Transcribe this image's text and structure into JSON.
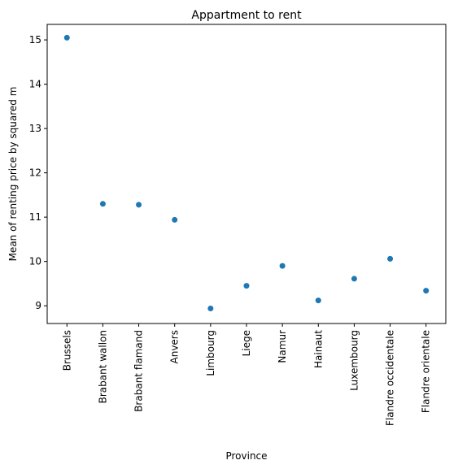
{
  "chart_data": {
    "type": "scatter",
    "title": "Appartment to rent",
    "xlabel": "Province",
    "ylabel": "Mean of renting price by squared m",
    "categories": [
      "Brussels",
      "Brabant wallon",
      "Brabant flamand",
      "Anvers",
      "Limbourg",
      "Liege",
      "Namur",
      "Hainaut",
      "Luxembourg",
      "Flandre occidentale",
      "Flandre orientale"
    ],
    "series": [
      {
        "values": [
          15.05,
          11.3,
          11.28,
          10.94,
          8.94,
          9.45,
          9.9,
          9.12,
          9.61,
          10.06,
          9.34
        ]
      }
    ],
    "yticks": [
      9,
      10,
      11,
      12,
      13,
      14,
      15
    ],
    "ylim": [
      8.6,
      15.35
    ],
    "grid": false,
    "colors": {
      "marker": "#1f77b4"
    }
  }
}
